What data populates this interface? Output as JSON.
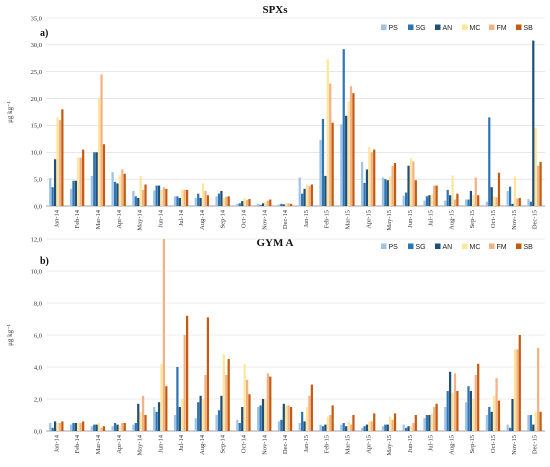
{
  "chart_data": [
    {
      "type": "bar",
      "title": "SPXs",
      "panel_label": "a)",
      "ylabel": "μg kg⁻¹",
      "ylim": [
        0,
        35
      ],
      "yticks": [
        "0,0",
        "5,0",
        "10,0",
        "15,0",
        "20,0",
        "25,0",
        "30,0",
        "35,0"
      ],
      "legend_position": "top-right",
      "categories": [
        "Jan-14",
        "Feb-14",
        "Mar-14",
        "Apr-14",
        "May-14",
        "Jun-14",
        "Jul-14",
        "Aug-14",
        "Sep-14",
        "Oct-14",
        "Nov-14",
        "Dec-14",
        "Jan-15",
        "Feb-15",
        "Mar-15",
        "Apr-15",
        "May-15",
        "Jun-15",
        "Jul-15",
        "Aug-15",
        "Sep-15",
        "Oct-15",
        "Nov-15",
        "Dec-15"
      ],
      "series": [
        {
          "name": "PS",
          "color": "#9dc3e6",
          "values": [
            5.2,
            3.2,
            5.6,
            6.3,
            2.8,
            2.9,
            1.8,
            1.5,
            1.8,
            0.4,
            0.4,
            0.3,
            5.3,
            12.3,
            15.2,
            8.2,
            5.3,
            1.9,
            1.0,
            1.0,
            1.2,
            0.8,
            2.8,
            1.3
          ]
        },
        {
          "name": "SG",
          "color": "#2e75b6",
          "values": [
            3.5,
            4.7,
            10.0,
            4.5,
            1.8,
            3.8,
            1.8,
            2.3,
            2.3,
            0.5,
            0.2,
            0.4,
            2.3,
            16.2,
            29.2,
            4.3,
            5.0,
            2.5,
            1.8,
            3.0,
            1.2,
            16.5,
            3.6,
            0.8
          ]
        },
        {
          "name": "AN",
          "color": "#1f4e79",
          "values": [
            8.7,
            4.7,
            10.0,
            4.2,
            1.5,
            3.8,
            1.5,
            1.5,
            2.8,
            0.9,
            0.5,
            0.3,
            3.2,
            5.6,
            16.8,
            6.8,
            4.8,
            7.5,
            2.0,
            2.0,
            2.8,
            3.5,
            0.4,
            30.8
          ]
        },
        {
          "name": "MC",
          "color": "#ffe699",
          "values": [
            16.5,
            9.0,
            20.0,
            5.7,
            5.6,
            3.0,
            3.0,
            4.2,
            1.5,
            1.5,
            0.8,
            0.6,
            4.0,
            27.3,
            19.5,
            11.0,
            5.5,
            8.9,
            2.2,
            5.7,
            2.0,
            1.8,
            5.5,
            14.5
          ]
        },
        {
          "name": "FM",
          "color": "#f4b183",
          "values": [
            16.0,
            9.0,
            24.5,
            6.8,
            3.0,
            3.5,
            3.0,
            2.8,
            1.7,
            1.1,
            1.0,
            0.5,
            3.7,
            22.8,
            22.3,
            10.0,
            7.5,
            8.3,
            3.8,
            1.2,
            5.3,
            1.6,
            1.4,
            7.5
          ]
        },
        {
          "name": "SB",
          "color": "#c55a11",
          "values": [
            18.0,
            10.5,
            11.5,
            6.0,
            4.0,
            3.2,
            3.0,
            2.0,
            1.8,
            1.3,
            1.2,
            0.4,
            4.0,
            15.5,
            21.0,
            10.5,
            8.0,
            4.8,
            3.8,
            2.3,
            2.0,
            6.2,
            1.5,
            8.2
          ]
        }
      ]
    },
    {
      "type": "bar",
      "title": "GYM A",
      "panel_label": "b)",
      "ylabel": "μg kg⁻¹",
      "ylim": [
        0,
        12
      ],
      "yticks": [
        "0,0",
        "2,0",
        "4,0",
        "6,0",
        "8,0",
        "10,0",
        "12,0"
      ],
      "legend_position": "top-right",
      "categories": [
        "Jan-14",
        "Feb-14",
        "Mar-14",
        "Apr-14",
        "May-14",
        "Jun-14",
        "Jul-14",
        "Aug-14",
        "Sep-14",
        "Oct-14",
        "Nov-14",
        "Dec-14",
        "Jan-15",
        "Feb-15",
        "Mar-15",
        "Apr-15",
        "May-15",
        "Jun-15",
        "Jul-15",
        "Aug-15",
        "Sep-15",
        "Oct-15",
        "Nov-15",
        "Dec-15"
      ],
      "series": [
        {
          "name": "PS",
          "color": "#9dc3e6",
          "values": [
            0.5,
            0.4,
            0.3,
            0.3,
            0.4,
            1.5,
            1.0,
            0.8,
            1.0,
            0.7,
            1.5,
            0.6,
            0.5,
            0.4,
            0.4,
            0.2,
            0.3,
            0.4,
            0.8,
            1.5,
            1.8,
            1.0,
            0.4,
            1.0
          ]
        },
        {
          "name": "SG",
          "color": "#2e75b6",
          "values": [
            0.2,
            0.5,
            0.4,
            0.5,
            0.5,
            1.2,
            4.0,
            1.8,
            1.3,
            0.5,
            1.6,
            0.7,
            1.2,
            0.3,
            0.5,
            0.3,
            0.4,
            0.2,
            1.0,
            2.5,
            2.8,
            1.5,
            0.2,
            1.0
          ]
        },
        {
          "name": "AN",
          "color": "#1f4e79",
          "values": [
            0.6,
            0.5,
            0.4,
            0.4,
            1.7,
            1.8,
            1.5,
            2.2,
            2.2,
            1.5,
            2.0,
            1.7,
            0.6,
            0.4,
            0.3,
            0.4,
            0.4,
            0.3,
            1.0,
            3.7,
            2.5,
            1.2,
            2.0,
            0.4
          ]
        },
        {
          "name": "MC",
          "color": "#ffe699",
          "values": [
            0.5,
            0.5,
            0.5,
            0.3,
            1.2,
            4.2,
            2.0,
            2.0,
            4.8,
            4.2,
            2.0,
            1.6,
            1.5,
            0.9,
            0.6,
            0.6,
            0.9,
            0.3,
            1.1,
            2.4,
            2.0,
            2.2,
            5.1,
            1.2
          ]
        },
        {
          "name": "FM",
          "color": "#f4b183",
          "values": [
            0.5,
            0.5,
            0.2,
            0.5,
            2.2,
            12.0,
            6.0,
            3.5,
            3.5,
            3.2,
            3.6,
            1.6,
            2.2,
            1.0,
            0.4,
            0.6,
            0.7,
            0.5,
            1.5,
            3.6,
            3.5,
            3.3,
            5.1,
            5.2
          ]
        },
        {
          "name": "SB",
          "color": "#c55a11",
          "values": [
            0.6,
            0.6,
            0.3,
            0.5,
            1.0,
            2.8,
            7.2,
            7.1,
            4.5,
            2.3,
            3.4,
            1.5,
            2.9,
            1.6,
            1.0,
            1.1,
            1.1,
            1.0,
            1.7,
            2.5,
            4.2,
            1.9,
            6.0,
            1.2
          ]
        }
      ]
    }
  ]
}
